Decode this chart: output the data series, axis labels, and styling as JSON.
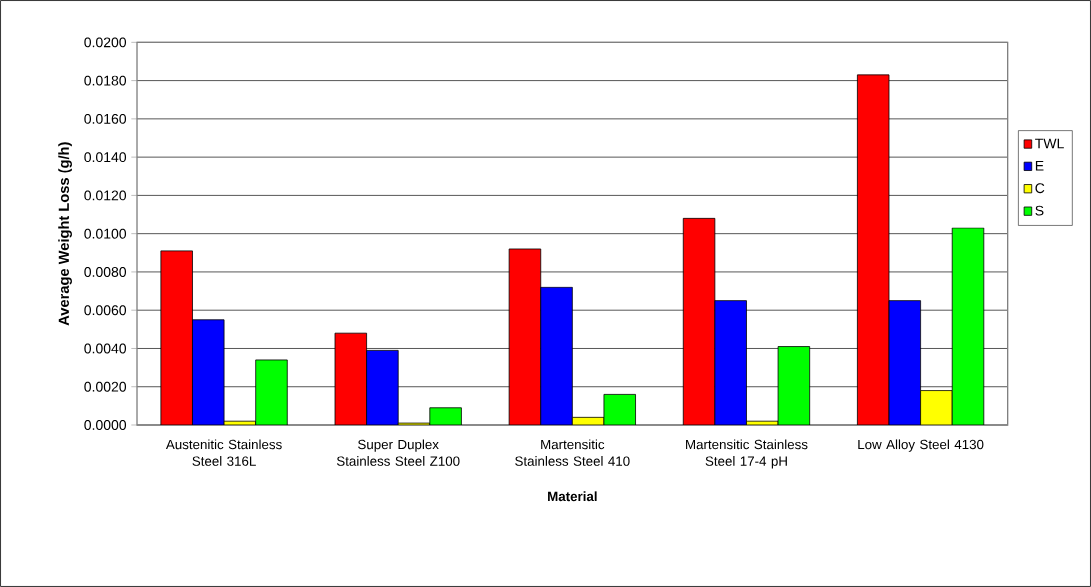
{
  "chart_data": {
    "type": "bar",
    "xlabel": "Material",
    "ylabel": "Average Weight Loss (g/h)",
    "categories": [
      "Austenitic Stainless Steel 316L",
      "Super Duplex Stainless Steel Z100",
      "Martensitic Stainless Steel 410",
      "Martensitic Stainless Steel 17-4 pH",
      "Low Alloy Steel 4130"
    ],
    "series": [
      {
        "name": "TWL",
        "color": "#ff0000",
        "values": [
          0.0091,
          0.0048,
          0.0092,
          0.0108,
          0.0183
        ]
      },
      {
        "name": "E",
        "color": "#0000ff",
        "values": [
          0.0055,
          0.0039,
          0.0072,
          0.0065,
          0.0065
        ]
      },
      {
        "name": "C",
        "color": "#ffff00",
        "values": [
          0.0002,
          0.0001,
          0.0004,
          0.0002,
          0.0018
        ]
      },
      {
        "name": "S",
        "color": "#00ff00",
        "values": [
          0.0034,
          0.0009,
          0.0016,
          0.0041,
          0.0103
        ]
      }
    ],
    "ylim": [
      0,
      0.02
    ],
    "yticks": [
      {
        "value": 0,
        "label": "0.0000"
      },
      {
        "value": 0.002,
        "label": "0.0020"
      },
      {
        "value": 0.004,
        "label": "0.0040"
      },
      {
        "value": 0.006,
        "label": "0.0060"
      },
      {
        "value": 0.008,
        "label": "0.0080"
      },
      {
        "value": 0.01,
        "label": "0.0100"
      },
      {
        "value": 0.012,
        "label": "0.0120"
      },
      {
        "value": 0.014,
        "label": "0.0140"
      },
      {
        "value": 0.016,
        "label": "0.0160"
      },
      {
        "value": 0.018,
        "label": "0.0180"
      },
      {
        "value": 0.02,
        "label": "0.0200"
      }
    ],
    "grid": "y",
    "legend": "right"
  }
}
